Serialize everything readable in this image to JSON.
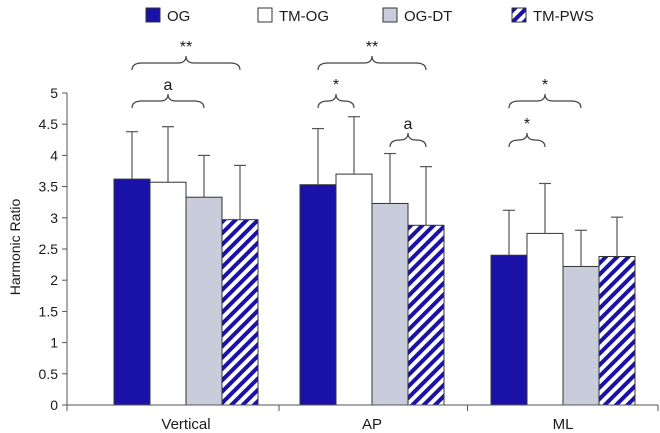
{
  "chart_data": {
    "type": "bar",
    "title": "",
    "xlabel": "",
    "ylabel": "Harmonic Ratio",
    "ylim": [
      0,
      5
    ],
    "yticks": [
      "0",
      "0.5",
      "1",
      "1.5",
      "2",
      "2.5",
      "3",
      "3.5",
      "4",
      "4.5",
      "5"
    ],
    "grid": false,
    "legend_position": "top",
    "categories": [
      "Vertical",
      "AP",
      "ML"
    ],
    "series": [
      {
        "name": "OG",
        "values": [
          3.62,
          3.53,
          2.4
        ],
        "errors": [
          0.76,
          0.9,
          0.72
        ],
        "style": "solid",
        "color": "#1a12a8"
      },
      {
        "name": "TM-OG",
        "values": [
          3.57,
          3.7,
          2.75
        ],
        "errors": [
          0.89,
          0.92,
          0.8
        ],
        "style": "solid",
        "color": "#ffffff"
      },
      {
        "name": "OG-DT",
        "values": [
          3.33,
          3.23,
          2.22
        ],
        "errors": [
          0.67,
          0.8,
          0.58
        ],
        "style": "solid",
        "color": "#c9ccda"
      },
      {
        "name": "TM-PWS",
        "values": [
          2.97,
          2.88,
          2.38
        ],
        "errors": [
          0.87,
          0.94,
          0.63
        ],
        "style": "hatched",
        "color": "#1a12a8"
      }
    ],
    "annotations": [
      {
        "label": "**",
        "category": 0,
        "from_series": 0,
        "to_series": 3,
        "level": 2
      },
      {
        "label": "a",
        "category": 0,
        "from_series": 0,
        "to_series": 2,
        "level": 1
      },
      {
        "label": "**",
        "category": 1,
        "from_series": 0,
        "to_series": 3,
        "level": 2
      },
      {
        "label": "*",
        "category": 1,
        "from_series": 0,
        "to_series": 1,
        "level": 1
      },
      {
        "label": "a",
        "category": 1,
        "from_series": 2,
        "to_series": 3,
        "level": 0
      },
      {
        "label": "*",
        "category": 2,
        "from_series": 0,
        "to_series": 2,
        "level": 1
      },
      {
        "label": "*",
        "category": 2,
        "from_series": 0,
        "to_series": 1,
        "level": 0
      }
    ]
  }
}
